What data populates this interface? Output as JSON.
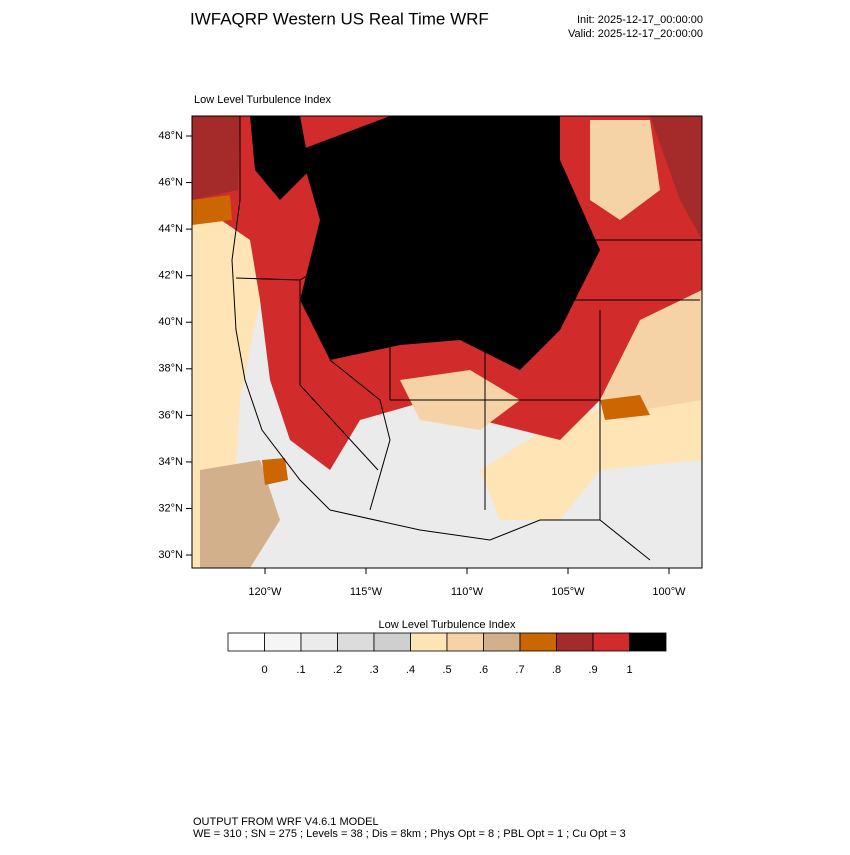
{
  "header": {
    "title": "IWFAQRP Western US Real Time WRF",
    "init": "Init: 2025-12-17_00:00:00",
    "valid": "Valid: 2025-12-17_20:00:00"
  },
  "map": {
    "subtitle": "Low Level Turbulence Index",
    "lat_ticks": [
      {
        "value": 30,
        "label": "30°N"
      },
      {
        "value": 32,
        "label": "32°N"
      },
      {
        "value": 34,
        "label": "34°N"
      },
      {
        "value": 36,
        "label": "36°N"
      },
      {
        "value": 38,
        "label": "38°N"
      },
      {
        "value": 40,
        "label": "40°N"
      },
      {
        "value": 42,
        "label": "42°N"
      },
      {
        "value": 44,
        "label": "44°N"
      },
      {
        "value": 46,
        "label": "46°N"
      },
      {
        "value": 48,
        "label": "48°N"
      }
    ],
    "lon_ticks": [
      {
        "value": -120,
        "label": "120°W"
      },
      {
        "value": -115,
        "label": "115°W"
      },
      {
        "value": -110,
        "label": "110°W"
      },
      {
        "value": -105,
        "label": "105°W"
      },
      {
        "value": -100,
        "label": "100°W"
      }
    ]
  },
  "colorbar": {
    "title": "Low Level Turbulence Index",
    "colors": [
      "#ffffff",
      "#f5f5f5",
      "#ebebeb",
      "#dcdcdc",
      "#cfcfcf",
      "#ffe4b5",
      "#f5d3a6",
      "#d2b08c",
      "#cc6600",
      "#a52a2a",
      "#d22b2b",
      "#000000"
    ],
    "levels": [
      0,
      {
        "value": 0.1,
        "label": ".1"
      },
      {
        "value": 0.2,
        "label": ".2"
      },
      {
        "value": 0.3,
        "label": ".3"
      },
      {
        "value": 0.4,
        "label": ".4"
      },
      {
        "value": 0.5,
        "label": ".5"
      },
      {
        "value": 0.6,
        "label": ".6"
      },
      {
        "value": 0.7,
        "label": ".7"
      },
      {
        "value": 0.8,
        "label": ".8"
      },
      {
        "value": 0.9,
        "label": ".9"
      },
      1
    ]
  },
  "footer": {
    "line1": "OUTPUT FROM WRF V4.6.1 MODEL",
    "line2": "WE = 310 ; SN = 275 ; Levels = 38 ; Dis = 8km ; Phys Opt = 8 ; PBL Opt = 1 ; Cu Opt = 3"
  }
}
